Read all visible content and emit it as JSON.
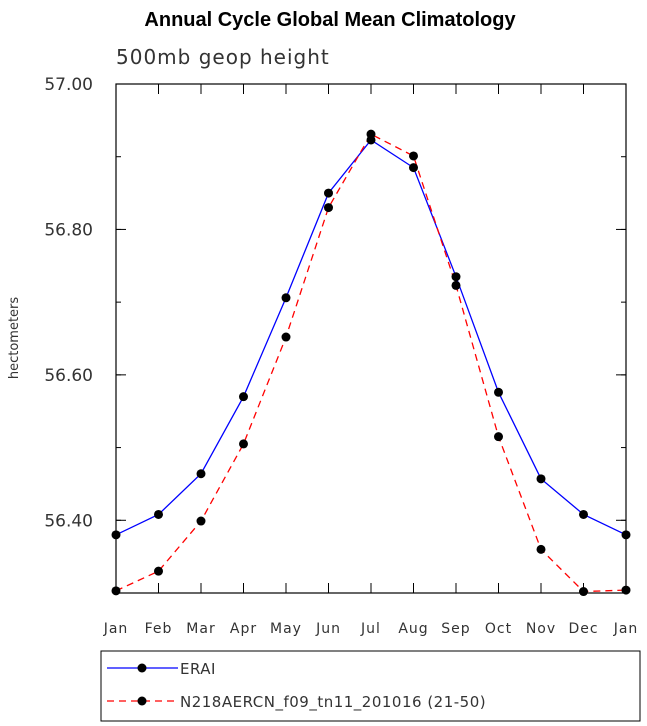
{
  "chart_data": {
    "type": "line",
    "title": "Annual Cycle Global Mean Climatology",
    "subtitle": "500mb geop height",
    "ylabel": "hectometers",
    "xlabel": "",
    "categories": [
      "Jan",
      "Feb",
      "Mar",
      "Apr",
      "May",
      "Jun",
      "Jul",
      "Aug",
      "Sep",
      "Oct",
      "Nov",
      "Dec",
      "Jan"
    ],
    "ylim": [
      56.3,
      57.0
    ],
    "yticks": [
      56.4,
      56.6,
      56.8,
      57.0
    ],
    "ytick_labels": [
      "56.40",
      "56.60",
      "56.80",
      "57.00"
    ],
    "series": [
      {
        "name": "ERAI",
        "color": "#0000ff",
        "dash": "solid",
        "values": [
          56.38,
          56.408,
          56.464,
          56.57,
          56.706,
          56.85,
          56.923,
          56.885,
          56.735,
          56.576,
          56.457,
          56.408,
          56.38
        ]
      },
      {
        "name": "N218AERCN_f09_tn11_201016 (21-50)",
        "color": "#ff0000",
        "dash": "dashed",
        "values": [
          56.303,
          56.33,
          56.399,
          56.505,
          56.652,
          56.83,
          56.931,
          56.901,
          56.723,
          56.515,
          56.36,
          56.302,
          56.304
        ]
      }
    ],
    "legend_position": "bottom"
  }
}
